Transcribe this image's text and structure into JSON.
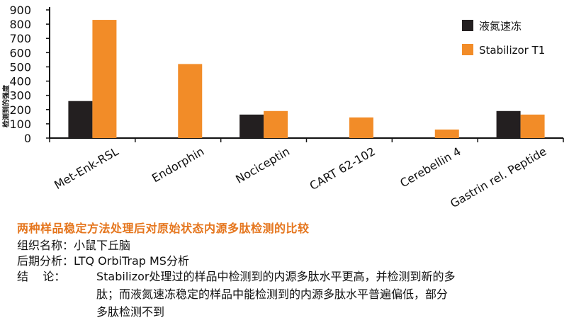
{
  "chart_data": {
    "type": "bar",
    "categories": [
      "Met-Enk-RSL",
      "Endorphin",
      "Nociceptin",
      "CART 62-102",
      "Cerebellin 4",
      "Gastrin rel. Peptide"
    ],
    "series": [
      {
        "name": "液氮速冻",
        "color": "#231f20",
        "values": [
          260,
          0,
          165,
          0,
          0,
          190
        ]
      },
      {
        "name": "Stabilizor T1",
        "color": "#f28c28",
        "values": [
          830,
          520,
          190,
          145,
          60,
          165
        ]
      }
    ],
    "ylabel": "检测到的强度",
    "yticks": [
      0,
      100,
      200,
      300,
      400,
      500,
      600,
      700,
      800,
      900
    ],
    "ylim": [
      0,
      900
    ],
    "legend_position": "top-right",
    "grid": false
  },
  "caption": {
    "title": "两种样品稳定方法处理后对原始状态内源多肽检测的比较",
    "tissue_label": "组织名称：",
    "tissue_value": "小鼠下丘脑",
    "analysis_label": "后期分析：",
    "analysis_value": "LTQ OrbiTrap MS分析",
    "conclusion_label": "结    论：",
    "conclusion_lines": [
      "Stabilizor处理过的样品中检测到的内源多肽水平更高，并检测到新的多",
      "肽；而液氮速冻稳定的样品中能检测到的内源多肽水平普遍偏低，部分",
      "多肽检测不到"
    ]
  }
}
